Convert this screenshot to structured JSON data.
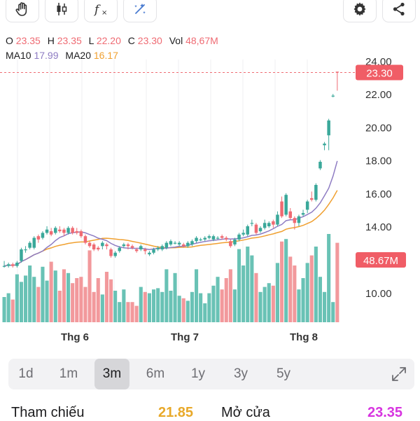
{
  "toolbar": {
    "buttons": [
      {
        "icon": "hand-icon"
      },
      {
        "icon": "candlestick-icon"
      },
      {
        "icon": "function-icon"
      },
      {
        "icon": "magic-icon"
      }
    ],
    "right_buttons": [
      {
        "icon": "gear-icon"
      },
      {
        "icon": "share-icon"
      }
    ]
  },
  "ohlc": {
    "o_label": "O",
    "o_value": "23.35",
    "h_label": "H",
    "h_value": "23.35",
    "l_label": "L",
    "l_value": "22.20",
    "c_label": "C",
    "c_value": "23.30",
    "vol_label": "Vol",
    "vol_value": "48,67M"
  },
  "ma": {
    "ma10_label": "MA10",
    "ma10_value": "17.99",
    "ma20_label": "MA20",
    "ma20_value": "16.17"
  },
  "chart_data": {
    "type": "candlestick",
    "y_ticks": [
      "24.00",
      "22.00",
      "20.00",
      "18.00",
      "16.00",
      "14.00",
      "10.00"
    ],
    "x_labels": [
      "Thg 6",
      "Thg 7",
      "Thg 8"
    ],
    "price_tag": "23.30",
    "volume_tag": "48.67M",
    "candles": [
      [
        11.6,
        11.6,
        11.9,
        11.5
      ],
      [
        11.6,
        11.7,
        11.8,
        11.5
      ],
      [
        11.7,
        11.6,
        11.8,
        11.5
      ],
      [
        11.6,
        11.8,
        11.9,
        11.5
      ],
      [
        11.9,
        12.6,
        12.7,
        11.8
      ],
      [
        12.6,
        12.6,
        12.8,
        12.4
      ],
      [
        12.7,
        13.0,
        13.1,
        12.6
      ],
      [
        12.7,
        13.3,
        13.4,
        12.6
      ],
      [
        13.4,
        13.2,
        13.5,
        13.0
      ],
      [
        13.3,
        13.6,
        13.7,
        13.2
      ],
      [
        13.6,
        13.8,
        14.0,
        13.5
      ],
      [
        13.7,
        13.5,
        13.9,
        13.4
      ],
      [
        13.6,
        13.9,
        14.0,
        13.5
      ],
      [
        13.8,
        13.7,
        14.0,
        13.6
      ],
      [
        13.8,
        13.6,
        13.9,
        13.4
      ],
      [
        13.6,
        13.9,
        14.0,
        13.5
      ],
      [
        13.9,
        13.6,
        14.0,
        13.5
      ],
      [
        13.7,
        13.6,
        13.9,
        13.5
      ],
      [
        13.7,
        13.4,
        13.8,
        13.3
      ],
      [
        13.4,
        13.0,
        13.5,
        12.9
      ],
      [
        13.0,
        12.8,
        13.1,
        12.7
      ],
      [
        12.9,
        12.6,
        13.0,
        12.5
      ],
      [
        12.7,
        12.6,
        12.8,
        12.5
      ],
      [
        12.8,
        13.0,
        13.1,
        12.6
      ],
      [
        12.9,
        12.8,
        13.0,
        12.6
      ],
      [
        12.6,
        12.2,
        12.7,
        12.1
      ],
      [
        12.2,
        12.4,
        12.5,
        12.1
      ],
      [
        12.5,
        12.7,
        12.8,
        12.4
      ],
      [
        12.8,
        12.9,
        13.0,
        12.7
      ],
      [
        12.9,
        12.8,
        13.0,
        12.6
      ],
      [
        12.8,
        12.7,
        12.9,
        12.6
      ],
      [
        12.6,
        12.5,
        12.7,
        12.4
      ],
      [
        12.6,
        12.8,
        12.9,
        12.5
      ],
      [
        12.6,
        12.5,
        12.7,
        12.3
      ],
      [
        12.3,
        12.4,
        12.5,
        12.2
      ],
      [
        12.4,
        12.6,
        12.7,
        12.3
      ],
      [
        12.6,
        12.7,
        12.8,
        12.5
      ],
      [
        12.6,
        12.8,
        12.9,
        12.5
      ],
      [
        12.7,
        13.0,
        13.1,
        12.6
      ],
      [
        12.9,
        13.1,
        13.2,
        12.8
      ],
      [
        13.0,
        13.0,
        13.1,
        12.9
      ],
      [
        12.9,
        13.0,
        13.1,
        12.8
      ],
      [
        12.9,
        12.8,
        13.0,
        12.7
      ],
      [
        12.8,
        13.0,
        13.1,
        12.7
      ],
      [
        12.9,
        13.1,
        13.2,
        12.8
      ],
      [
        13.1,
        13.3,
        13.4,
        13.0
      ],
      [
        13.2,
        13.2,
        13.3,
        13.1
      ],
      [
        13.2,
        13.3,
        13.4,
        13.1
      ],
      [
        13.3,
        13.4,
        13.5,
        13.2
      ],
      [
        13.2,
        13.4,
        13.5,
        13.1
      ],
      [
        13.3,
        13.3,
        13.4,
        13.2
      ],
      [
        13.4,
        13.3,
        13.5,
        13.2
      ],
      [
        13.3,
        13.2,
        13.4,
        13.1
      ],
      [
        13.1,
        12.8,
        13.2,
        12.7
      ],
      [
        12.9,
        13.2,
        13.3,
        12.8
      ],
      [
        13.2,
        13.5,
        13.6,
        13.1
      ],
      [
        13.5,
        13.6,
        13.8,
        13.4
      ],
      [
        13.5,
        14.0,
        14.1,
        13.4
      ],
      [
        14.2,
        14.2,
        14.4,
        14.0
      ],
      [
        14.1,
        13.6,
        14.2,
        13.5
      ],
      [
        13.7,
        13.9,
        14.0,
        13.6
      ],
      [
        13.9,
        14.2,
        14.4,
        13.8
      ],
      [
        14.0,
        14.2,
        14.3,
        13.9
      ],
      [
        14.3,
        14.1,
        14.4,
        13.9
      ],
      [
        14.1,
        14.7,
        14.9,
        14.0
      ],
      [
        15.5,
        14.6,
        15.8,
        14.5
      ],
      [
        14.7,
        15.9,
        16.0,
        14.6
      ],
      [
        14.9,
        14.5,
        15.1,
        14.4
      ],
      [
        14.5,
        14.2,
        14.6,
        13.8
      ],
      [
        14.2,
        14.6,
        14.7,
        14.0
      ],
      [
        14.7,
        14.8,
        15.0,
        14.6
      ],
      [
        15.0,
        15.5,
        15.6,
        14.8
      ],
      [
        15.7,
        15.6,
        16.1,
        15.5
      ],
      [
        15.6,
        16.5,
        16.6,
        15.5
      ],
      [
        17.5,
        17.9,
        18.0,
        17.4
      ],
      [
        18.9,
        19.0,
        19.1,
        18.6
      ],
      [
        19.5,
        20.4,
        20.5,
        18.6
      ],
      [
        21.9,
        21.9,
        22.0,
        21.8
      ],
      [
        23.35,
        23.3,
        23.35,
        22.2
      ]
    ],
    "volumes": [
      2.0,
      2.3,
      1.8,
      3.8,
      3.2,
      3.7,
      4.5,
      3.6,
      2.8,
      4.4,
      3.3,
      4.8,
      4.1,
      2.5,
      4.2,
      3.9,
      3.1,
      3.5,
      3.6,
      2.8,
      5.7,
      2.4,
      3.5,
      2.2,
      4.0,
      3.4,
      2.5,
      1.6,
      2.6,
      1.6,
      1.6,
      1.3,
      2.8,
      2.4,
      2.3,
      2.6,
      2.7,
      2.4,
      4.2,
      2.5,
      3.9,
      2.1,
      1.9,
      1.7,
      2.4,
      4.2,
      2.3,
      1.5,
      2.3,
      2.9,
      3.6,
      2.6,
      3.5,
      4.2,
      2.6,
      5.8,
      4.5,
      6.0,
      5.3,
      3.9,
      2.4,
      2.8,
      3.1,
      2.9,
      4.7,
      6.4,
      6.6,
      5.2,
      4.5,
      2.6,
      3.5,
      4.7,
      5.3,
      6.0,
      3.6,
      2.4,
      7.0,
      1.6,
      6.3
    ]
  },
  "ranges": {
    "items": [
      "1d",
      "1m",
      "3m",
      "6m",
      "1y",
      "3y",
      "5y"
    ],
    "active": "3m"
  },
  "footer": {
    "ref_label": "Tham chiếu",
    "ref_value": "21.85",
    "open_label": "Mở cửa",
    "open_value": "23.35",
    "ref_color": "#e8a92a",
    "open_color": "#d735e0"
  },
  "colors": {
    "up": "#3aa89a",
    "down": "#ef6b73",
    "vol_up": "#69c2b5",
    "vol_down": "#f2999c",
    "ma10": "#8e7cc3",
    "ma20": "#f0a030"
  }
}
